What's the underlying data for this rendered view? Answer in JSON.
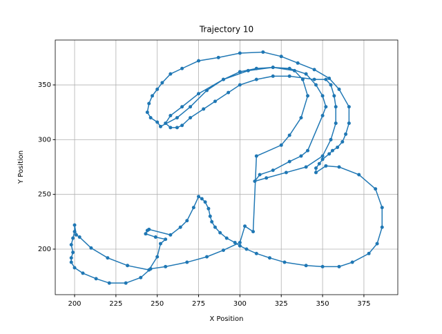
{
  "chart_data": {
    "type": "line",
    "title": "Trajectory 10",
    "x_label": "X Position",
    "y_label": "Y Position",
    "color": "#1f77b4",
    "grid": true,
    "xlim": [
      188.3,
      395.5
    ],
    "ylim": [
      158.4,
      391
    ],
    "xticks": [
      200,
      225,
      250,
      275,
      300,
      325,
      350,
      375
    ],
    "yticks": [
      200,
      250,
      300,
      350
    ],
    "x": [
      245,
      258,
      264,
      268,
      272,
      275,
      277,
      279,
      281,
      282,
      283,
      285,
      288,
      292,
      297,
      300,
      304,
      310,
      318,
      327,
      340,
      350,
      360,
      368,
      378,
      383,
      386,
      386,
      382,
      372,
      360,
      352,
      346,
      346,
      348,
      350,
      354,
      356,
      359,
      362,
      364,
      366,
      366,
      360,
      354,
      345,
      335,
      325,
      314,
      300,
      287,
      275,
      265,
      258,
      253,
      250,
      247,
      245,
      244,
      246,
      250,
      252,
      262,
      270,
      280,
      290,
      300,
      310,
      320,
      330,
      340,
      346,
      350,
      352,
      350,
      341,
      337,
      330,
      320,
      312,
      309,
      316,
      328,
      340,
      350,
      355,
      358,
      358,
      357,
      355,
      352,
      345,
      330,
      320,
      310,
      300,
      293,
      285,
      278,
      270,
      265,
      262,
      258,
      255,
      258,
      265,
      275,
      290,
      305,
      320,
      333,
      338,
      341,
      337,
      330,
      325,
      310,
      308,
      303,
      300,
      290,
      280,
      268,
      255,
      246,
      240,
      231,
      221,
      213,
      205,
      200,
      198,
      198,
      199,
      198,
      199,
      200,
      200,
      201,
      203,
      210,
      220,
      232,
      245,
      250,
      252,
      255,
      249,
      243,
      244
    ],
    "values": [
      218,
      213,
      220,
      226,
      238,
      248,
      246,
      243,
      237,
      230,
      225,
      220,
      215,
      210,
      206,
      203,
      200,
      196,
      192,
      188,
      185,
      184,
      184,
      188,
      196,
      205,
      220,
      238,
      255,
      268,
      275,
      276,
      270,
      274,
      278,
      282,
      287,
      290,
      293,
      298,
      305,
      315,
      330,
      346,
      356,
      364,
      370,
      376,
      380,
      379,
      375,
      372,
      365,
      360,
      352,
      346,
      340,
      333,
      325,
      320,
      316,
      312,
      320,
      330,
      345,
      355,
      362,
      365,
      366,
      365,
      360,
      350,
      340,
      330,
      322,
      290,
      285,
      280,
      272,
      268,
      262,
      265,
      270,
      275,
      285,
      300,
      315,
      330,
      340,
      350,
      355,
      355,
      358,
      358,
      355,
      350,
      343,
      335,
      328,
      320,
      313,
      311,
      311,
      315,
      322,
      330,
      342,
      355,
      363,
      366,
      363,
      355,
      340,
      320,
      304,
      295,
      285,
      216,
      221,
      206,
      199,
      193,
      188,
      184,
      182,
      174,
      169,
      169,
      173,
      178,
      183,
      188,
      192,
      197,
      204,
      210,
      216,
      222,
      213,
      211,
      201,
      192,
      185,
      181,
      193,
      205,
      209,
      211,
      214,
      217
    ]
  }
}
